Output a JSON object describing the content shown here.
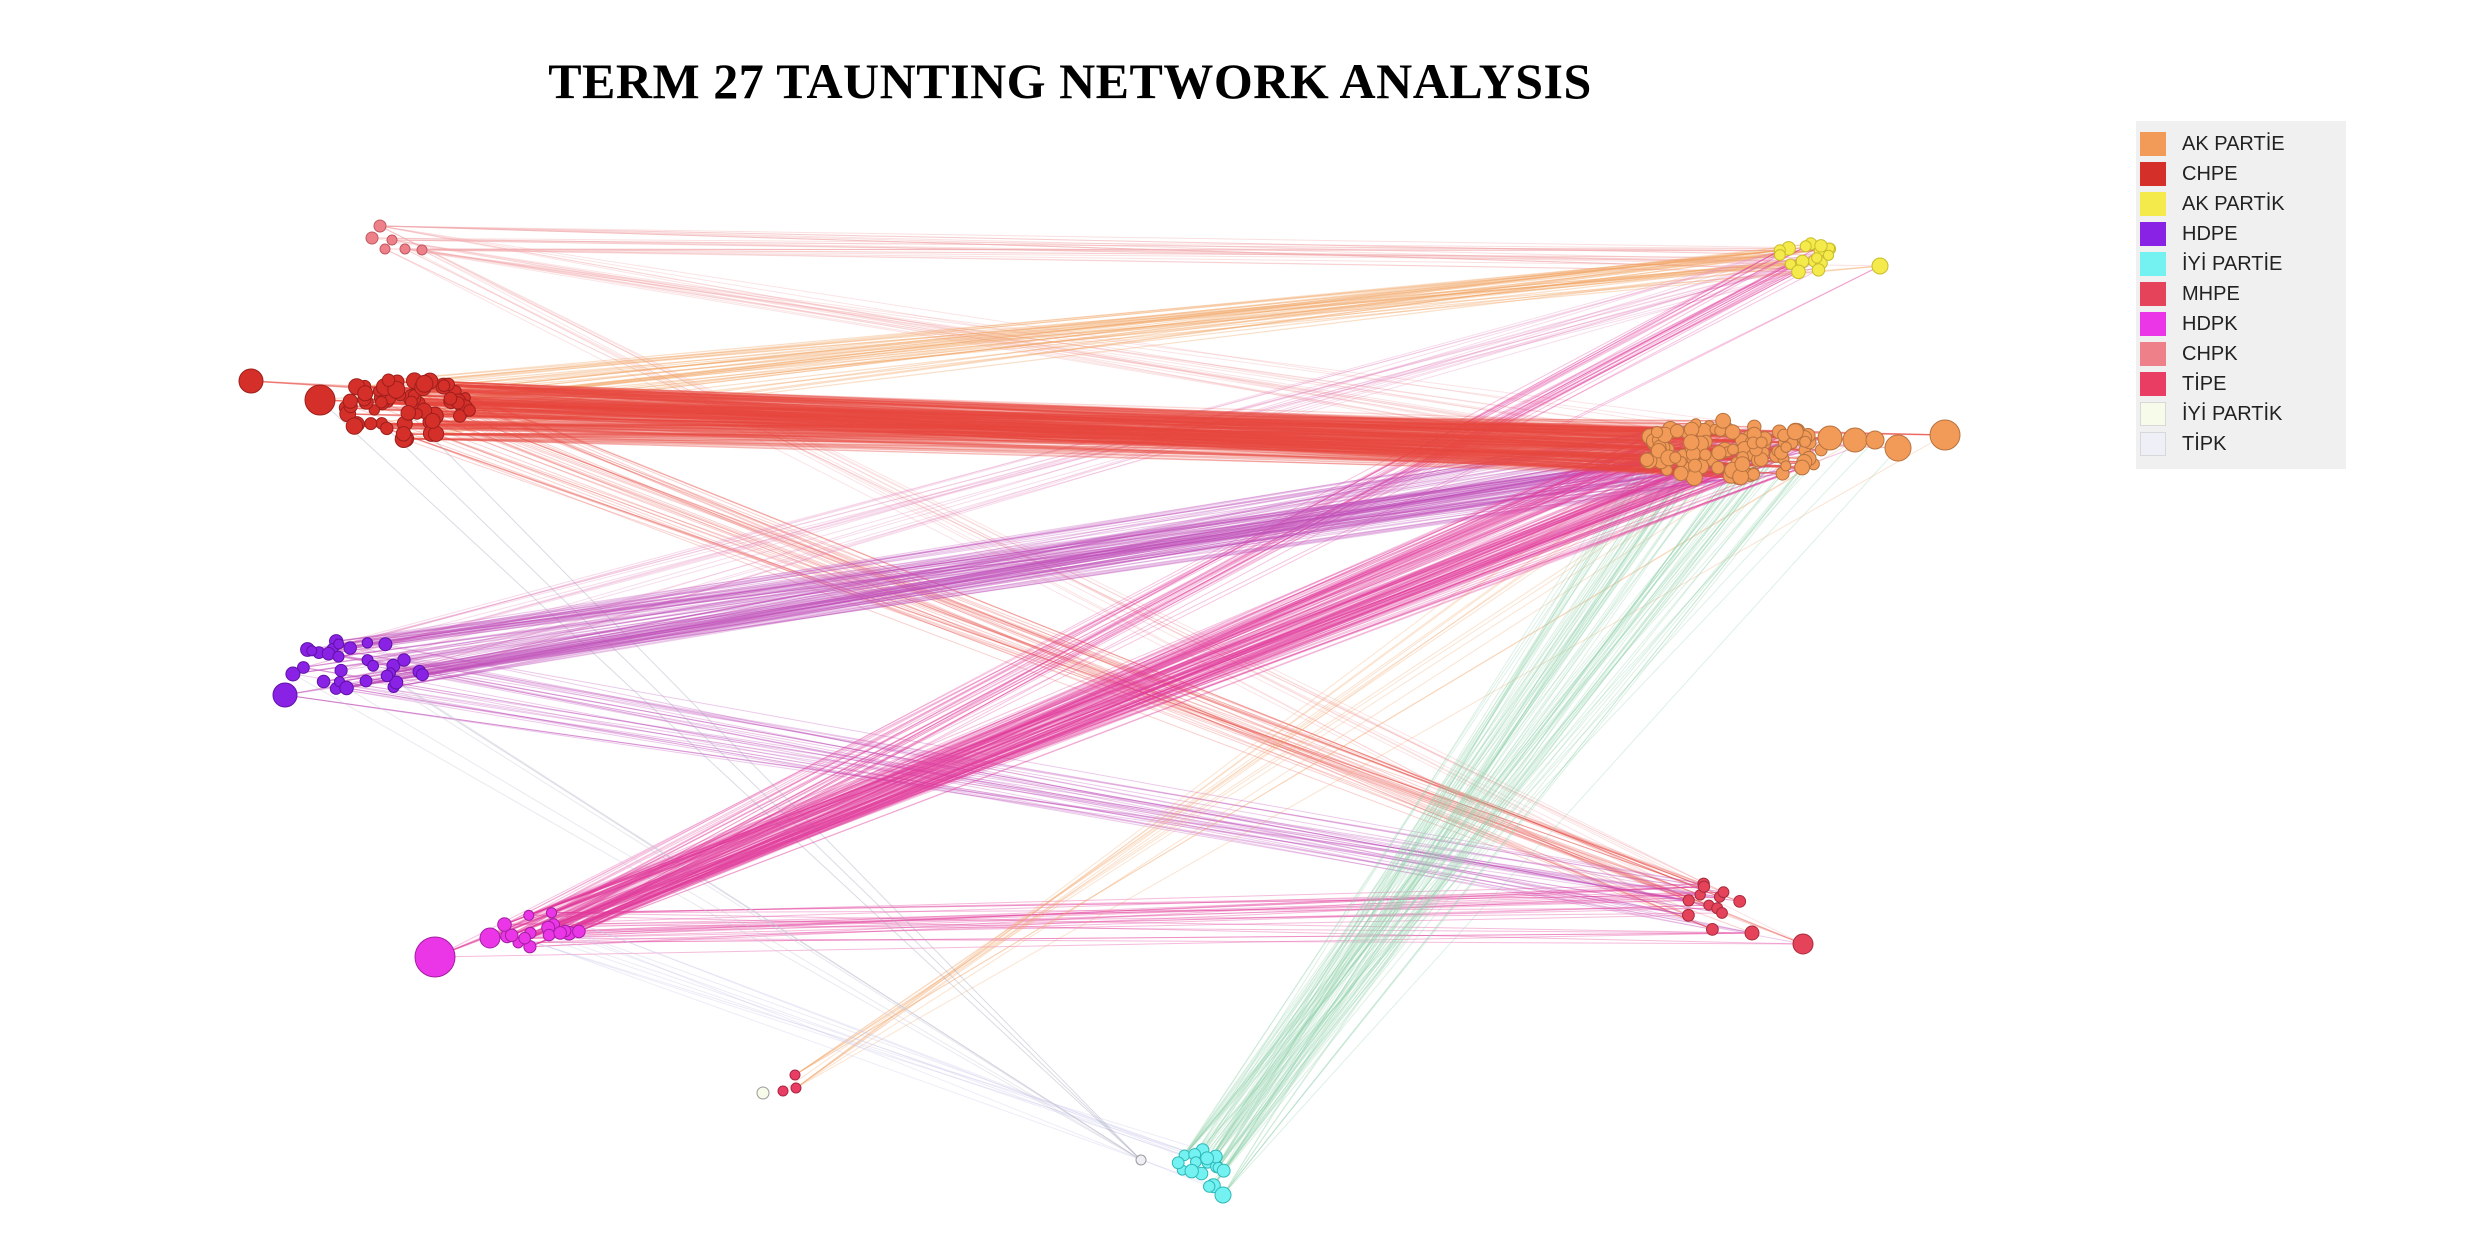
{
  "title": "TERM 27 TAUNTING NETWORK ANALYSIS",
  "legend": [
    {
      "label": "AK PARTİE",
      "color": "#f29a57"
    },
    {
      "label": "CHPE",
      "color": "#d52f2a"
    },
    {
      "label": "AK PARTİK",
      "color": "#f4ea4c"
    },
    {
      "label": "HDPE",
      "color": "#8a22e6"
    },
    {
      "label": "İYİ PARTİE",
      "color": "#74f1f1"
    },
    {
      "label": "MHPE",
      "color": "#e4435a"
    },
    {
      "label": "HDPK",
      "color": "#ea36e6"
    },
    {
      "label": "CHPK",
      "color": "#ed8089"
    },
    {
      "label": "TİPE",
      "color": "#e93d63"
    },
    {
      "label": "İYİ PARTİK",
      "color": "#f7fbe9"
    },
    {
      "label": "TİPK",
      "color": "#efeff8"
    }
  ],
  "edge_colors": {
    "chpe_to_akp": "#e8493e",
    "hdp_to_akp": "#c14fb8",
    "hdpk_to_akp": "#e13b9c",
    "iyi_to_akp": "#8fd1a8",
    "to_mhp": "#d84f8e",
    "akpk": "#f2a262",
    "chpk": "#f2a7a9",
    "misc": "#c9c9d6"
  }
}
